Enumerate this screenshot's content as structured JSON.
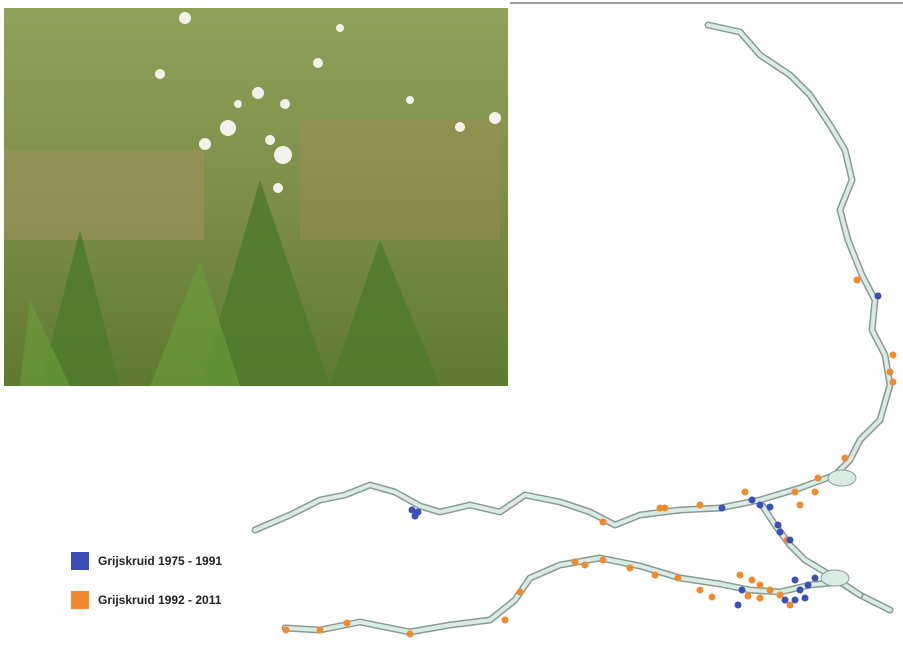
{
  "legend": {
    "items": [
      {
        "label": "Grijskruid 1975 - 1991",
        "color": "#3a4fb8"
      },
      {
        "label": "Grijskruid 1992 - 2011",
        "color": "#f08a2c"
      }
    ]
  }
}
